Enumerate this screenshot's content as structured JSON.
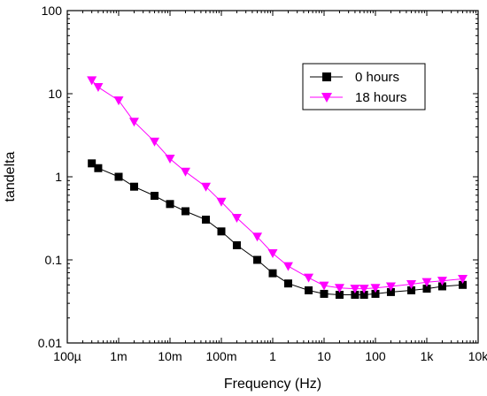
{
  "chart_data": {
    "type": "line",
    "xlabel": "Frequency (Hz)",
    "ylabel": "tandelta",
    "xscale": "log",
    "yscale": "log",
    "xlim": [
      0.0001,
      10000
    ],
    "ylim": [
      0.01,
      100
    ],
    "x_ticks": [
      {
        "value": 0.0001,
        "label": "100µ"
      },
      {
        "value": 0.001,
        "label": "1m"
      },
      {
        "value": 0.01,
        "label": "10m"
      },
      {
        "value": 0.1,
        "label": "100m"
      },
      {
        "value": 1,
        "label": "1"
      },
      {
        "value": 10,
        "label": "10"
      },
      {
        "value": 100,
        "label": "100"
      },
      {
        "value": 1000,
        "label": "1k"
      },
      {
        "value": 10000,
        "label": "10k"
      }
    ],
    "y_ticks": [
      {
        "value": 0.01,
        "label": "0.01"
      },
      {
        "value": 0.1,
        "label": "0.1"
      },
      {
        "value": 1,
        "label": "1"
      },
      {
        "value": 10,
        "label": "10"
      },
      {
        "value": 100,
        "label": "100"
      }
    ],
    "grid": false,
    "legend_position": "top-right",
    "x": [
      0.0003,
      0.0004,
      0.001,
      0.002,
      0.005,
      0.01,
      0.02,
      0.05,
      0.1,
      0.2,
      0.5,
      1,
      2,
      5,
      10,
      20,
      40,
      60,
      100,
      200,
      500,
      1000,
      2000,
      5000
    ],
    "series": [
      {
        "name": "0 hours",
        "marker": "square",
        "color": "#000000",
        "values": [
          1.45,
          1.27,
          1.0,
          0.76,
          0.59,
          0.47,
          0.385,
          0.305,
          0.22,
          0.15,
          0.1,
          0.069,
          0.052,
          0.043,
          0.039,
          0.038,
          0.038,
          0.038,
          0.039,
          0.041,
          0.043,
          0.045,
          0.048,
          0.05
        ]
      },
      {
        "name": "18 hours",
        "marker": "triangle-down",
        "color": "#ff00ff",
        "values": [
          14.5,
          12.0,
          8.3,
          4.6,
          2.65,
          1.65,
          1.15,
          0.76,
          0.5,
          0.32,
          0.19,
          0.12,
          0.084,
          0.061,
          0.049,
          0.046,
          0.045,
          0.045,
          0.046,
          0.048,
          0.051,
          0.054,
          0.056,
          0.059
        ]
      }
    ]
  }
}
